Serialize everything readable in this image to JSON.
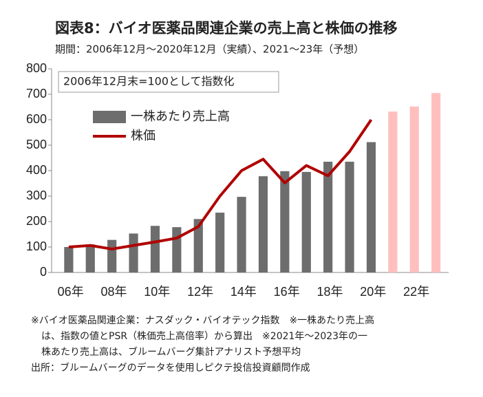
{
  "chart_data": {
    "type": "bar",
    "title": "図表8：バイオ医薬品関連企業の売上高と株価の推移",
    "subtitle": "期間：2006年12月～2020年12月（実績）、2021～23年（予想）",
    "annotation": "2006年12月末=100として指数化",
    "categories": [
      "06年",
      null,
      "08年",
      null,
      "10年",
      null,
      "12年",
      null,
      "14年",
      null,
      "16年",
      null,
      "18年",
      null,
      "20年",
      null,
      "22年",
      null
    ],
    "series": [
      {
        "name": "一株あたり売上高",
        "type": "bar",
        "color": "#6d6d6d",
        "colors": [
          "#6d6d6d",
          "#6d6d6d",
          "#6d6d6d",
          "#6d6d6d",
          "#6d6d6d",
          "#6d6d6d",
          "#6d6d6d",
          "#6d6d6d",
          "#6d6d6d",
          "#6d6d6d",
          "#6d6d6d",
          "#6d6d6d",
          "#6d6d6d",
          "#6d6d6d",
          "#6d6d6d",
          "#ffbfbf",
          "#ffbfbf",
          "#ffbfbf"
        ],
        "values": [
          100,
          110,
          128,
          153,
          183,
          178,
          210,
          235,
          297,
          378,
          398,
          395,
          435,
          435,
          512,
          632,
          652,
          705
        ]
      },
      {
        "name": "株価",
        "type": "line",
        "color": "#b00000",
        "values": [
          100,
          106,
          92,
          106,
          120,
          135,
          180,
          300,
          400,
          445,
          352,
          420,
          380,
          475,
          600,
          null,
          null,
          null
        ]
      }
    ],
    "ylim": [
      0,
      800
    ],
    "yticks": [
      0,
      100,
      200,
      300,
      400,
      500,
      600,
      700,
      800
    ],
    "notes": [
      "※バイオ医薬品関連企業：ナスダック・バイオテック指数　※一株あたり売上高",
      "は、指数の値とPSR（株価売上高倍率）から算出　※2021年～2023年の一",
      "株あたり売上高は、ブルームバーグ集計アナリスト予想平均",
      "出所：ブルームバーグのデータを使用しピクテ投信投資顧問作成"
    ]
  }
}
